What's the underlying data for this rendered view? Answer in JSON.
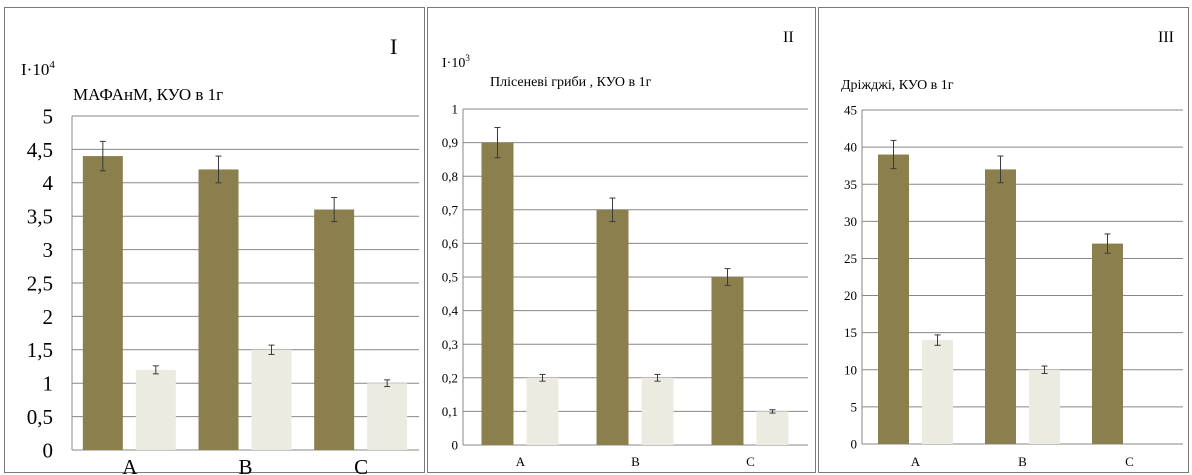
{
  "colors": {
    "series1": "#8b7f4d",
    "series2": "#ecebe1",
    "grid": "#878787",
    "error": "#3a3a3a"
  },
  "chart_data": [
    {
      "type": "bar",
      "panel_label": "I",
      "unit_base": "I·10",
      "unit_exp": "4",
      "title": "МАФАнМ, КУО в 1г",
      "categories": [
        "A",
        "B",
        "C"
      ],
      "ylim": [
        0,
        5
      ],
      "ystep": 0.5,
      "ytick_labels": [
        "0",
        "0,5",
        "1",
        "1,5",
        "2",
        "2,5",
        "3",
        "3,5",
        "4",
        "4,5",
        "5"
      ],
      "grid": true,
      "series": [
        {
          "values": [
            4.4,
            4.2,
            3.6
          ],
          "errors": [
            0.22,
            0.2,
            0.18
          ]
        },
        {
          "values": [
            1.2,
            1.5,
            1.0
          ],
          "errors": [
            0.06,
            0.07,
            0.05
          ]
        }
      ]
    },
    {
      "type": "bar",
      "panel_label": "II",
      "unit_base": "I·10",
      "unit_exp": "3",
      "title": "Плісеневі гриби , КУО в 1г",
      "categories": [
        "A",
        "B",
        "C"
      ],
      "ylim": [
        0,
        1
      ],
      "ystep": 0.1,
      "ytick_labels": [
        "0",
        "0,1",
        "0,2",
        "0,3",
        "0,4",
        "0,5",
        "0,6",
        "0,7",
        "0,8",
        "0,9",
        "1"
      ],
      "grid": true,
      "series": [
        {
          "values": [
            0.9,
            0.7,
            0.5
          ],
          "errors": [
            0.045,
            0.035,
            0.025
          ]
        },
        {
          "values": [
            0.2,
            0.2,
            0.1
          ],
          "errors": [
            0.01,
            0.01,
            0.005
          ]
        }
      ]
    },
    {
      "type": "bar",
      "panel_label": "III",
      "unit_base": "",
      "unit_exp": "",
      "title": "Дріжджі, КУО в 1г",
      "categories": [
        "A",
        "B",
        "C"
      ],
      "ylim": [
        0,
        45
      ],
      "ystep": 5,
      "ytick_labels": [
        "0",
        "5",
        "10",
        "15",
        "20",
        "25",
        "30",
        "35",
        "40",
        "45"
      ],
      "grid": true,
      "series": [
        {
          "values": [
            39,
            37,
            27
          ],
          "errors": [
            1.9,
            1.8,
            1.3
          ]
        },
        {
          "values": [
            14,
            10,
            0
          ],
          "errors": [
            0.7,
            0.5,
            0
          ]
        }
      ]
    }
  ]
}
